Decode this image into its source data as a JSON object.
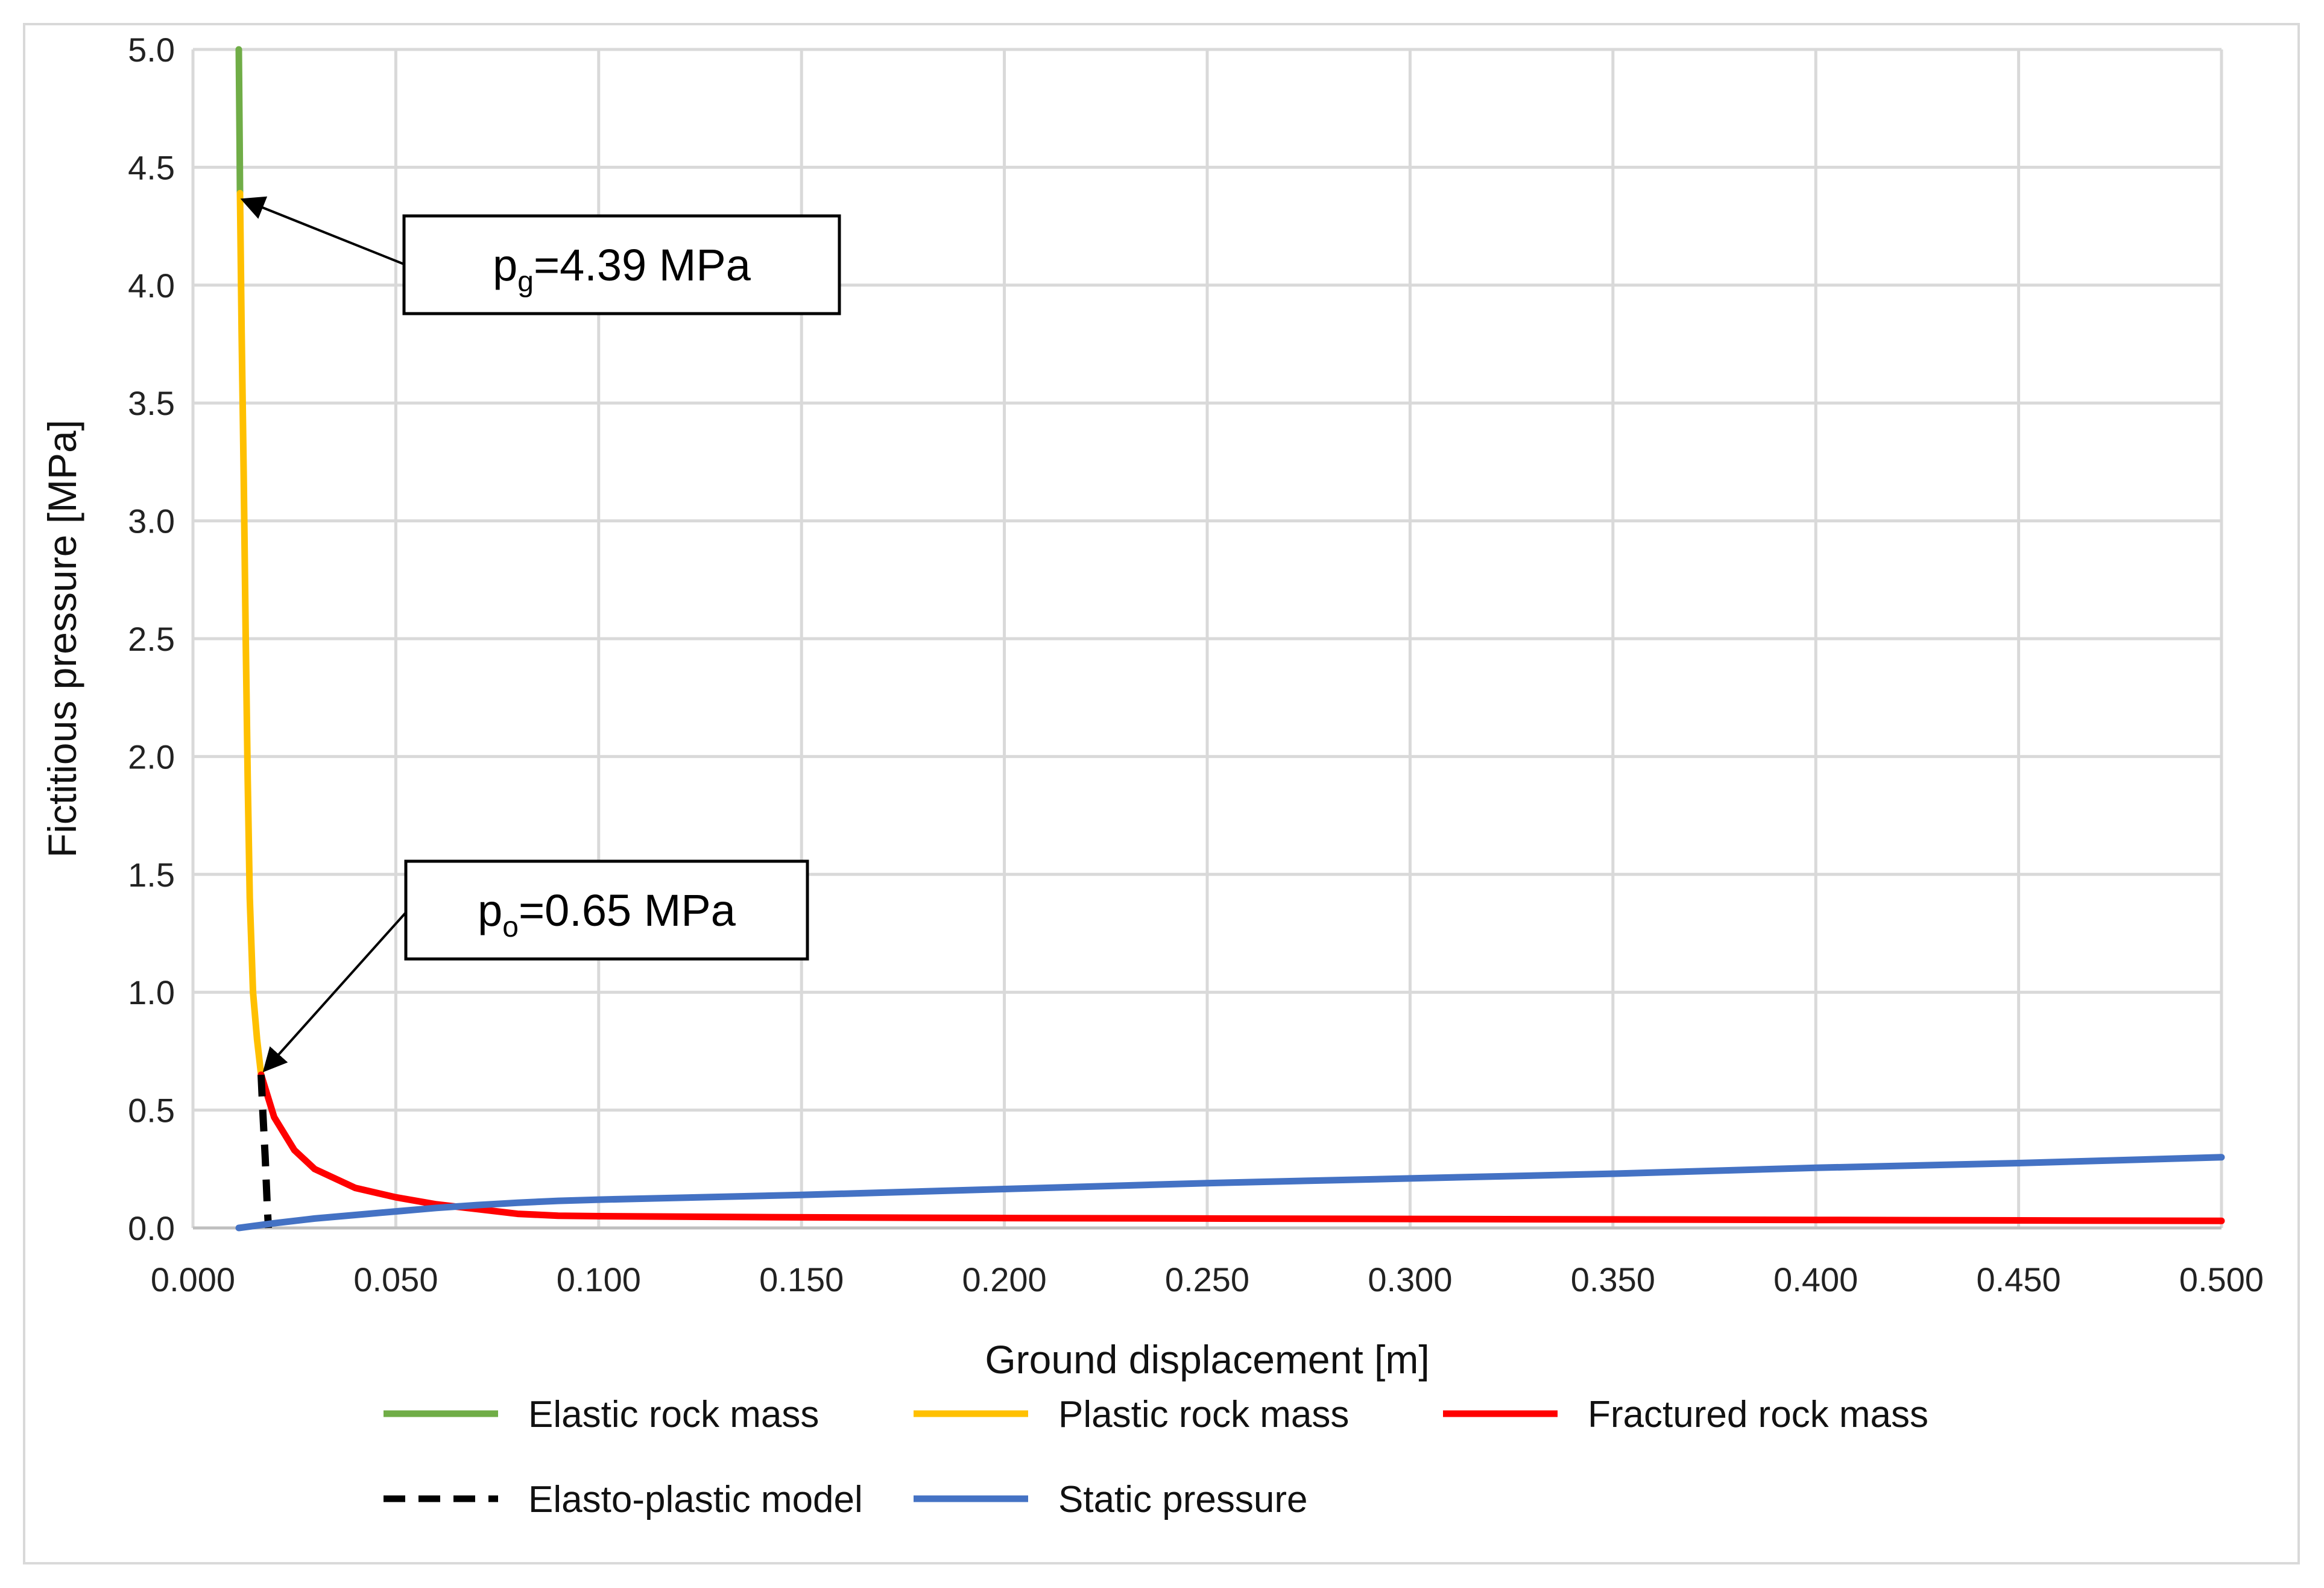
{
  "chart_data": {
    "type": "line",
    "xlabel": "Ground displacement [m]",
    "ylabel": "Fictitious pressure [MPa]",
    "xlim": [
      0.0,
      0.5
    ],
    "ylim": [
      0.0,
      5.0
    ],
    "x_ticks": [
      "0.000",
      "0.050",
      "0.100",
      "0.150",
      "0.200",
      "0.250",
      "0.300",
      "0.350",
      "0.400",
      "0.450",
      "0.500"
    ],
    "y_ticks": [
      "0.0",
      "0.5",
      "1.0",
      "1.5",
      "2.0",
      "2.5",
      "3.0",
      "3.5",
      "4.0",
      "4.5",
      "5.0"
    ],
    "grid": true,
    "legend_position": "bottom",
    "series": [
      {
        "name": "Elastic rock mass",
        "color": "#70ad47",
        "dash": "solid",
        "points": [
          [
            0.0113,
            5.0
          ],
          [
            0.0114,
            4.8
          ],
          [
            0.0115,
            4.6
          ],
          [
            0.0116,
            4.39
          ]
        ]
      },
      {
        "name": "Plastic rock mass",
        "color": "#ffc000",
        "dash": "solid",
        "points": [
          [
            0.0116,
            4.39
          ],
          [
            0.012,
            3.8
          ],
          [
            0.0125,
            3.2
          ],
          [
            0.013,
            2.5
          ],
          [
            0.0135,
            1.9
          ],
          [
            0.014,
            1.4
          ],
          [
            0.0148,
            1.0
          ],
          [
            0.0158,
            0.8
          ],
          [
            0.0168,
            0.65
          ]
        ]
      },
      {
        "name": "Fractured rock mass",
        "color": "#ff0000",
        "dash": "solid",
        "points": [
          [
            0.0168,
            0.65
          ],
          [
            0.02,
            0.47
          ],
          [
            0.025,
            0.33
          ],
          [
            0.03,
            0.25
          ],
          [
            0.04,
            0.17
          ],
          [
            0.05,
            0.13
          ],
          [
            0.06,
            0.1
          ],
          [
            0.07,
            0.08
          ],
          [
            0.08,
            0.06
          ],
          [
            0.09,
            0.052
          ],
          [
            0.1,
            0.05
          ],
          [
            0.15,
            0.045
          ],
          [
            0.2,
            0.042
          ],
          [
            0.25,
            0.04
          ],
          [
            0.3,
            0.038
          ],
          [
            0.35,
            0.036
          ],
          [
            0.4,
            0.034
          ],
          [
            0.45,
            0.032
          ],
          [
            0.5,
            0.03
          ]
        ]
      },
      {
        "name": "Elasto-plastic model",
        "color": "#000000",
        "dash": "dashed",
        "points": [
          [
            0.0168,
            0.65
          ],
          [
            0.0172,
            0.5
          ],
          [
            0.0178,
            0.3
          ],
          [
            0.0183,
            0.1
          ],
          [
            0.0186,
            0.0
          ]
        ]
      },
      {
        "name": "Static pressure",
        "color": "#4472c4",
        "dash": "solid",
        "points": [
          [
            0.0113,
            0.0
          ],
          [
            0.02,
            0.02
          ],
          [
            0.03,
            0.04
          ],
          [
            0.04,
            0.055
          ],
          [
            0.05,
            0.07
          ],
          [
            0.06,
            0.085
          ],
          [
            0.07,
            0.097
          ],
          [
            0.08,
            0.107
          ],
          [
            0.09,
            0.115
          ],
          [
            0.1,
            0.12
          ],
          [
            0.15,
            0.14
          ],
          [
            0.2,
            0.165
          ],
          [
            0.25,
            0.19
          ],
          [
            0.3,
            0.21
          ],
          [
            0.35,
            0.23
          ],
          [
            0.4,
            0.255
          ],
          [
            0.45,
            0.275
          ],
          [
            0.5,
            0.3
          ]
        ]
      }
    ],
    "annotations": [
      {
        "main": "p",
        "sub": "g",
        "rest": "=4.39 MPa",
        "x": 0.0116,
        "y": 4.39
      },
      {
        "main": "p",
        "sub": "o",
        "rest": "=0.65 MPa",
        "x": 0.0168,
        "y": 0.65
      }
    ]
  }
}
